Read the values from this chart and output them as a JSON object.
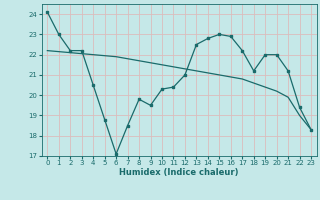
{
  "title": "",
  "xlabel": "Humidex (Indice chaleur)",
  "xlim": [
    -0.5,
    23.5
  ],
  "ylim": [
    17,
    24.5
  ],
  "yticks": [
    17,
    18,
    19,
    20,
    21,
    22,
    23,
    24
  ],
  "xticks": [
    0,
    1,
    2,
    3,
    4,
    5,
    6,
    7,
    8,
    9,
    10,
    11,
    12,
    13,
    14,
    15,
    16,
    17,
    18,
    19,
    20,
    21,
    22,
    23
  ],
  "background_color": "#c5e8e8",
  "grid_color": "#dbbcbc",
  "line_color": "#1a6b6b",
  "line1_x": [
    0,
    1,
    2,
    3,
    4,
    5,
    6,
    7,
    8,
    9,
    10,
    11,
    12,
    13,
    14,
    15,
    16,
    17,
    18,
    19,
    20,
    21,
    22,
    23
  ],
  "line1_y": [
    24.1,
    23.0,
    22.2,
    22.2,
    20.5,
    18.8,
    17.1,
    18.5,
    19.8,
    19.5,
    20.3,
    20.4,
    21.0,
    22.5,
    22.8,
    23.0,
    22.9,
    22.2,
    21.2,
    22.0,
    22.0,
    21.2,
    19.4,
    18.3
  ],
  "line2_x": [
    0,
    1,
    2,
    3,
    4,
    5,
    6,
    7,
    8,
    9,
    10,
    11,
    12,
    13,
    14,
    15,
    16,
    17,
    18,
    19,
    20,
    21,
    22,
    23
  ],
  "line2_y": [
    22.2,
    22.15,
    22.1,
    22.05,
    22.0,
    21.95,
    21.9,
    21.8,
    21.7,
    21.6,
    21.5,
    21.4,
    21.3,
    21.2,
    21.1,
    21.0,
    20.9,
    20.8,
    20.6,
    20.4,
    20.2,
    19.9,
    19.0,
    18.3
  ],
  "marker": "s",
  "markersize": 2.0,
  "linewidth": 0.9,
  "tick_fontsize": 5.0,
  "xlabel_fontsize": 6.0
}
